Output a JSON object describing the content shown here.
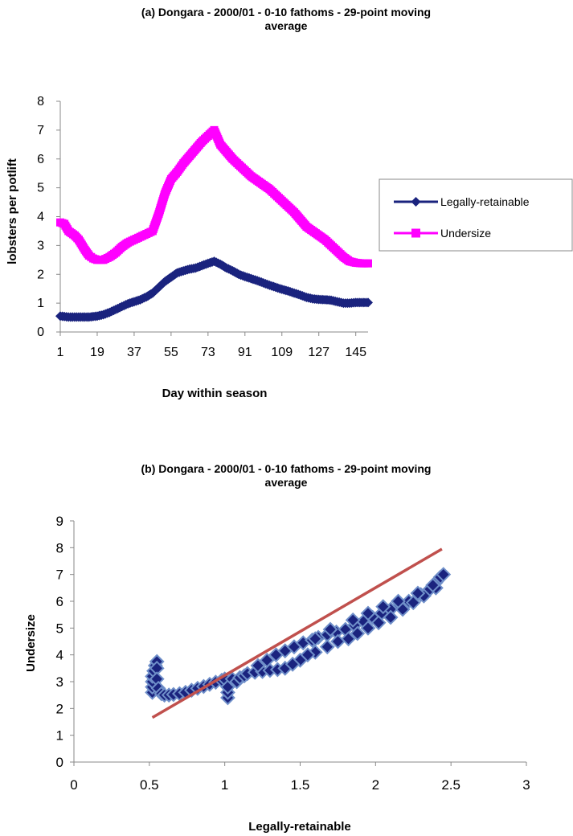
{
  "chart_data": [
    {
      "type": "line",
      "title": "(a) Dongara - 2000/01 - 0-10 fathoms - 29-point moving average",
      "title_lines": [
        "(a) Dongara - 2000/01 - 0-10 fathoms - 29-point moving",
        "average"
      ],
      "xlabel": "Day within season",
      "ylabel": "lobsters per potlift",
      "ylim": [
        0,
        8
      ],
      "yticks": [
        "0",
        "1",
        "2",
        "3",
        "4",
        "5",
        "6",
        "7",
        "8"
      ],
      "xlim": [
        1,
        151
      ],
      "xticks": [
        "1",
        "19",
        "37",
        "55",
        "73",
        "91",
        "109",
        "127",
        "145"
      ],
      "x_tick_values": [
        1,
        19,
        37,
        55,
        73,
        91,
        109,
        127,
        145
      ],
      "legend_position": "right",
      "series": [
        {
          "name": "Legally-retainable",
          "color": "#1a237e",
          "marker": "diamond",
          "x": [
            1,
            5,
            10,
            15,
            19,
            22,
            25,
            28,
            31,
            34,
            37,
            40,
            43,
            46,
            49,
            52,
            55,
            58,
            61,
            64,
            67,
            70,
            73,
            76,
            79,
            82,
            85,
            88,
            91,
            94,
            97,
            100,
            103,
            106,
            109,
            112,
            115,
            118,
            121,
            124,
            127,
            130,
            133,
            136,
            139,
            142,
            145,
            148,
            151
          ],
          "values": [
            0.55,
            0.52,
            0.52,
            0.52,
            0.55,
            0.6,
            0.68,
            0.78,
            0.88,
            0.98,
            1.05,
            1.12,
            1.22,
            1.35,
            1.55,
            1.75,
            1.9,
            2.05,
            2.12,
            2.18,
            2.22,
            2.3,
            2.38,
            2.45,
            2.35,
            2.22,
            2.12,
            2.0,
            1.92,
            1.85,
            1.78,
            1.7,
            1.62,
            1.55,
            1.48,
            1.42,
            1.35,
            1.28,
            1.2,
            1.15,
            1.13,
            1.12,
            1.1,
            1.05,
            1.0,
            1.0,
            1.02,
            1.02,
            1.02
          ]
        },
        {
          "name": "Undersize",
          "color": "#ff00ff",
          "marker": "square",
          "x": [
            1,
            3,
            5,
            8,
            10,
            13,
            15,
            17,
            19,
            22,
            25,
            28,
            31,
            34,
            37,
            40,
            43,
            46,
            49,
            52,
            55,
            58,
            61,
            64,
            67,
            70,
            73,
            76,
            79,
            82,
            85,
            88,
            91,
            94,
            97,
            100,
            103,
            106,
            109,
            112,
            115,
            118,
            121,
            124,
            127,
            130,
            133,
            136,
            139,
            142,
            145,
            148,
            151
          ],
          "values": [
            3.8,
            3.75,
            3.5,
            3.35,
            3.2,
            2.85,
            2.65,
            2.55,
            2.5,
            2.5,
            2.6,
            2.75,
            2.95,
            3.1,
            3.2,
            3.3,
            3.4,
            3.5,
            4.1,
            4.8,
            5.3,
            5.55,
            5.85,
            6.1,
            6.35,
            6.6,
            6.8,
            7.0,
            6.5,
            6.25,
            6.0,
            5.8,
            5.6,
            5.4,
            5.25,
            5.1,
            4.95,
            4.75,
            4.55,
            4.35,
            4.15,
            3.9,
            3.65,
            3.5,
            3.35,
            3.2,
            3.0,
            2.8,
            2.6,
            2.45,
            2.4,
            2.38,
            2.38
          ]
        }
      ]
    },
    {
      "type": "scatter",
      "title": "(b) Dongara - 2000/01 - 0-10 fathoms - 29-point moving average",
      "title_lines": [
        "(b) Dongara - 2000/01 - 0-10 fathoms - 29-point moving",
        "average"
      ],
      "xlabel": "Legally-retainable",
      "ylabel": "Undersize",
      "xlim": [
        0,
        3
      ],
      "ylim": [
        0,
        9
      ],
      "xticks": [
        "0",
        "0.5",
        "1",
        "1.5",
        "2",
        "2.5",
        "3"
      ],
      "x_tick_values": [
        0,
        0.5,
        1,
        1.5,
        2,
        2.5,
        3
      ],
      "yticks": [
        "0",
        "1",
        "2",
        "3",
        "4",
        "5",
        "6",
        "7",
        "8",
        "9"
      ],
      "marker_color": "#1a237e",
      "marker_edge": "#6f8fc9",
      "line_color": "#c0504d",
      "trend_line": {
        "x": [
          0.52,
          2.44
        ],
        "y": [
          1.66,
          7.95
        ]
      },
      "points": [
        {
          "x": 0.52,
          "y": 2.6
        },
        {
          "x": 0.52,
          "y": 2.8
        },
        {
          "x": 0.52,
          "y": 3.0
        },
        {
          "x": 0.52,
          "y": 3.2
        },
        {
          "x": 0.53,
          "y": 3.4
        },
        {
          "x": 0.54,
          "y": 3.6
        },
        {
          "x": 0.55,
          "y": 3.75
        },
        {
          "x": 0.55,
          "y": 3.5
        },
        {
          "x": 0.55,
          "y": 3.1
        },
        {
          "x": 0.56,
          "y": 2.75
        },
        {
          "x": 0.58,
          "y": 2.55
        },
        {
          "x": 0.6,
          "y": 2.5
        },
        {
          "x": 0.63,
          "y": 2.5
        },
        {
          "x": 0.66,
          "y": 2.52
        },
        {
          "x": 0.7,
          "y": 2.55
        },
        {
          "x": 0.74,
          "y": 2.6
        },
        {
          "x": 0.78,
          "y": 2.68
        },
        {
          "x": 0.82,
          "y": 2.75
        },
        {
          "x": 0.86,
          "y": 2.82
        },
        {
          "x": 0.9,
          "y": 2.9
        },
        {
          "x": 0.94,
          "y": 2.98
        },
        {
          "x": 0.98,
          "y": 3.05
        },
        {
          "x": 1.0,
          "y": 3.1
        },
        {
          "x": 1.02,
          "y": 2.4
        },
        {
          "x": 1.02,
          "y": 2.6
        },
        {
          "x": 1.02,
          "y": 2.8
        },
        {
          "x": 1.05,
          "y": 3.1
        },
        {
          "x": 1.08,
          "y": 3.0
        },
        {
          "x": 1.1,
          "y": 3.15
        },
        {
          "x": 1.13,
          "y": 3.22
        },
        {
          "x": 1.15,
          "y": 3.3
        },
        {
          "x": 1.2,
          "y": 3.35
        },
        {
          "x": 1.25,
          "y": 3.38
        },
        {
          "x": 1.3,
          "y": 3.42
        },
        {
          "x": 1.35,
          "y": 3.45
        },
        {
          "x": 1.4,
          "y": 3.5
        },
        {
          "x": 1.22,
          "y": 3.6
        },
        {
          "x": 1.28,
          "y": 3.8
        },
        {
          "x": 1.34,
          "y": 4.0
        },
        {
          "x": 1.4,
          "y": 4.15
        },
        {
          "x": 1.46,
          "y": 4.3
        },
        {
          "x": 1.52,
          "y": 4.45
        },
        {
          "x": 1.58,
          "y": 4.55
        },
        {
          "x": 1.62,
          "y": 4.65
        },
        {
          "x": 1.68,
          "y": 4.75
        },
        {
          "x": 1.74,
          "y": 4.85
        },
        {
          "x": 1.8,
          "y": 4.95
        },
        {
          "x": 1.86,
          "y": 5.1
        },
        {
          "x": 1.92,
          "y": 5.25
        },
        {
          "x": 1.98,
          "y": 5.4
        },
        {
          "x": 2.04,
          "y": 5.55
        },
        {
          "x": 2.1,
          "y": 5.7
        },
        {
          "x": 2.16,
          "y": 5.85
        },
        {
          "x": 2.22,
          "y": 6.0
        },
        {
          "x": 2.3,
          "y": 6.25
        },
        {
          "x": 2.36,
          "y": 6.45
        },
        {
          "x": 2.4,
          "y": 6.7
        },
        {
          "x": 2.43,
          "y": 6.9
        },
        {
          "x": 2.45,
          "y": 7.0
        },
        {
          "x": 2.4,
          "y": 6.5
        },
        {
          "x": 2.32,
          "y": 6.2
        },
        {
          "x": 2.25,
          "y": 5.95
        },
        {
          "x": 2.18,
          "y": 5.7
        },
        {
          "x": 2.1,
          "y": 5.4
        },
        {
          "x": 2.02,
          "y": 5.2
        },
        {
          "x": 1.95,
          "y": 5.0
        },
        {
          "x": 1.88,
          "y": 4.8
        },
        {
          "x": 1.82,
          "y": 4.6
        },
        {
          "x": 1.75,
          "y": 4.5
        },
        {
          "x": 1.68,
          "y": 4.3
        },
        {
          "x": 1.6,
          "y": 4.1
        },
        {
          "x": 1.55,
          "y": 4.0
        },
        {
          "x": 1.5,
          "y": 3.8
        },
        {
          "x": 1.45,
          "y": 3.65
        },
        {
          "x": 1.6,
          "y": 4.6
        },
        {
          "x": 1.7,
          "y": 4.95
        },
        {
          "x": 1.85,
          "y": 5.3
        },
        {
          "x": 1.95,
          "y": 5.55
        },
        {
          "x": 2.05,
          "y": 5.8
        },
        {
          "x": 2.15,
          "y": 6.0
        },
        {
          "x": 2.28,
          "y": 6.3
        },
        {
          "x": 2.38,
          "y": 6.6
        }
      ]
    }
  ]
}
